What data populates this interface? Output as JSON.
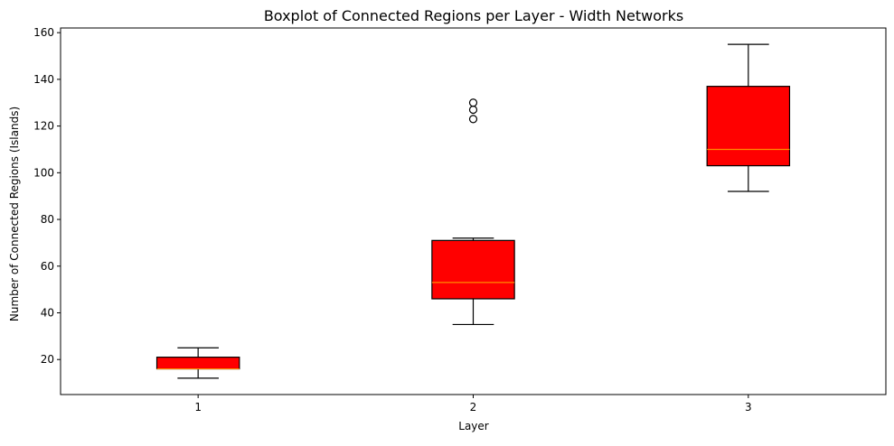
{
  "chart_data": {
    "type": "boxplot",
    "title": "Boxplot of Connected Regions per Layer - Width Networks",
    "xlabel": "Layer",
    "ylabel": "Number of Connected Regions (Islands)",
    "categories": [
      "1",
      "2",
      "3"
    ],
    "ylim": [
      5,
      162
    ],
    "yticks": [
      20,
      40,
      60,
      80,
      100,
      120,
      140,
      160
    ],
    "grid": false,
    "legend": "none",
    "boxes": [
      {
        "category": "1",
        "whisker_low": 12,
        "q1": 16,
        "median": 16,
        "q3": 21,
        "whisker_high": 25,
        "outliers": []
      },
      {
        "category": "2",
        "whisker_low": 35,
        "q1": 46,
        "median": 53,
        "q3": 71,
        "whisker_high": 72,
        "outliers": [
          123,
          127,
          130
        ]
      },
      {
        "category": "3",
        "whisker_low": 92,
        "q1": 103,
        "median": 110,
        "q3": 137,
        "whisker_high": 155,
        "outliers": []
      }
    ],
    "colors": {
      "box_fill": "#ff0000",
      "box_edge": "#000000",
      "median": "#ff8c00",
      "whisker": "#000000",
      "outlier_edge": "#000000"
    }
  }
}
